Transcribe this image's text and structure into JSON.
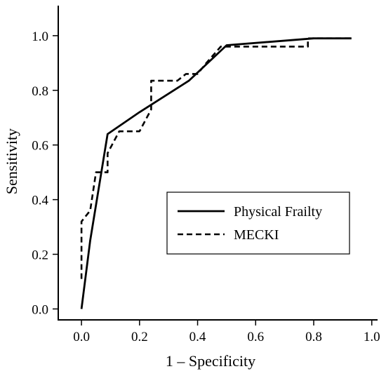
{
  "chart_data": {
    "type": "line",
    "title": "",
    "xlabel": "1 – Specificity",
    "ylabel": "Sensitivity",
    "xlim": [
      -0.08,
      1.02
    ],
    "ylim": [
      -0.04,
      1.11
    ],
    "x_ticks": [
      0.0,
      0.2,
      0.4,
      0.6,
      0.8,
      1.0
    ],
    "y_ticks": [
      0.0,
      0.2,
      0.4,
      0.6,
      0.8,
      1.0
    ],
    "x_tick_labels": [
      "0.0",
      "0.2",
      "0.4",
      "0.6",
      "0.8",
      "1.0"
    ],
    "y_tick_labels": [
      "0.0",
      "0.2",
      "0.4",
      "0.6",
      "0.8",
      "1.0"
    ],
    "grid": false,
    "legend_position": "lower-right",
    "series": [
      {
        "name": "Physical Frailty",
        "style": "solid",
        "color": "#000000",
        "points": [
          [
            0.0,
            0.0
          ],
          [
            0.03,
            0.25
          ],
          [
            0.09,
            0.64
          ],
          [
            0.2,
            0.72
          ],
          [
            0.37,
            0.835
          ],
          [
            0.5,
            0.965
          ],
          [
            0.8,
            0.99
          ],
          [
            0.93,
            0.99
          ]
        ]
      },
      {
        "name": "MECKI",
        "style": "dashed",
        "color": "#000000",
        "points": [
          [
            0.0,
            0.11
          ],
          [
            0.0,
            0.32
          ],
          [
            0.03,
            0.36
          ],
          [
            0.05,
            0.5
          ],
          [
            0.09,
            0.5
          ],
          [
            0.09,
            0.57
          ],
          [
            0.13,
            0.65
          ],
          [
            0.2,
            0.65
          ],
          [
            0.24,
            0.73
          ],
          [
            0.24,
            0.835
          ],
          [
            0.33,
            0.835
          ],
          [
            0.36,
            0.86
          ],
          [
            0.4,
            0.86
          ],
          [
            0.43,
            0.9
          ],
          [
            0.48,
            0.96
          ],
          [
            0.78,
            0.96
          ],
          [
            0.78,
            0.99
          ],
          [
            0.93,
            0.99
          ]
        ]
      }
    ]
  }
}
